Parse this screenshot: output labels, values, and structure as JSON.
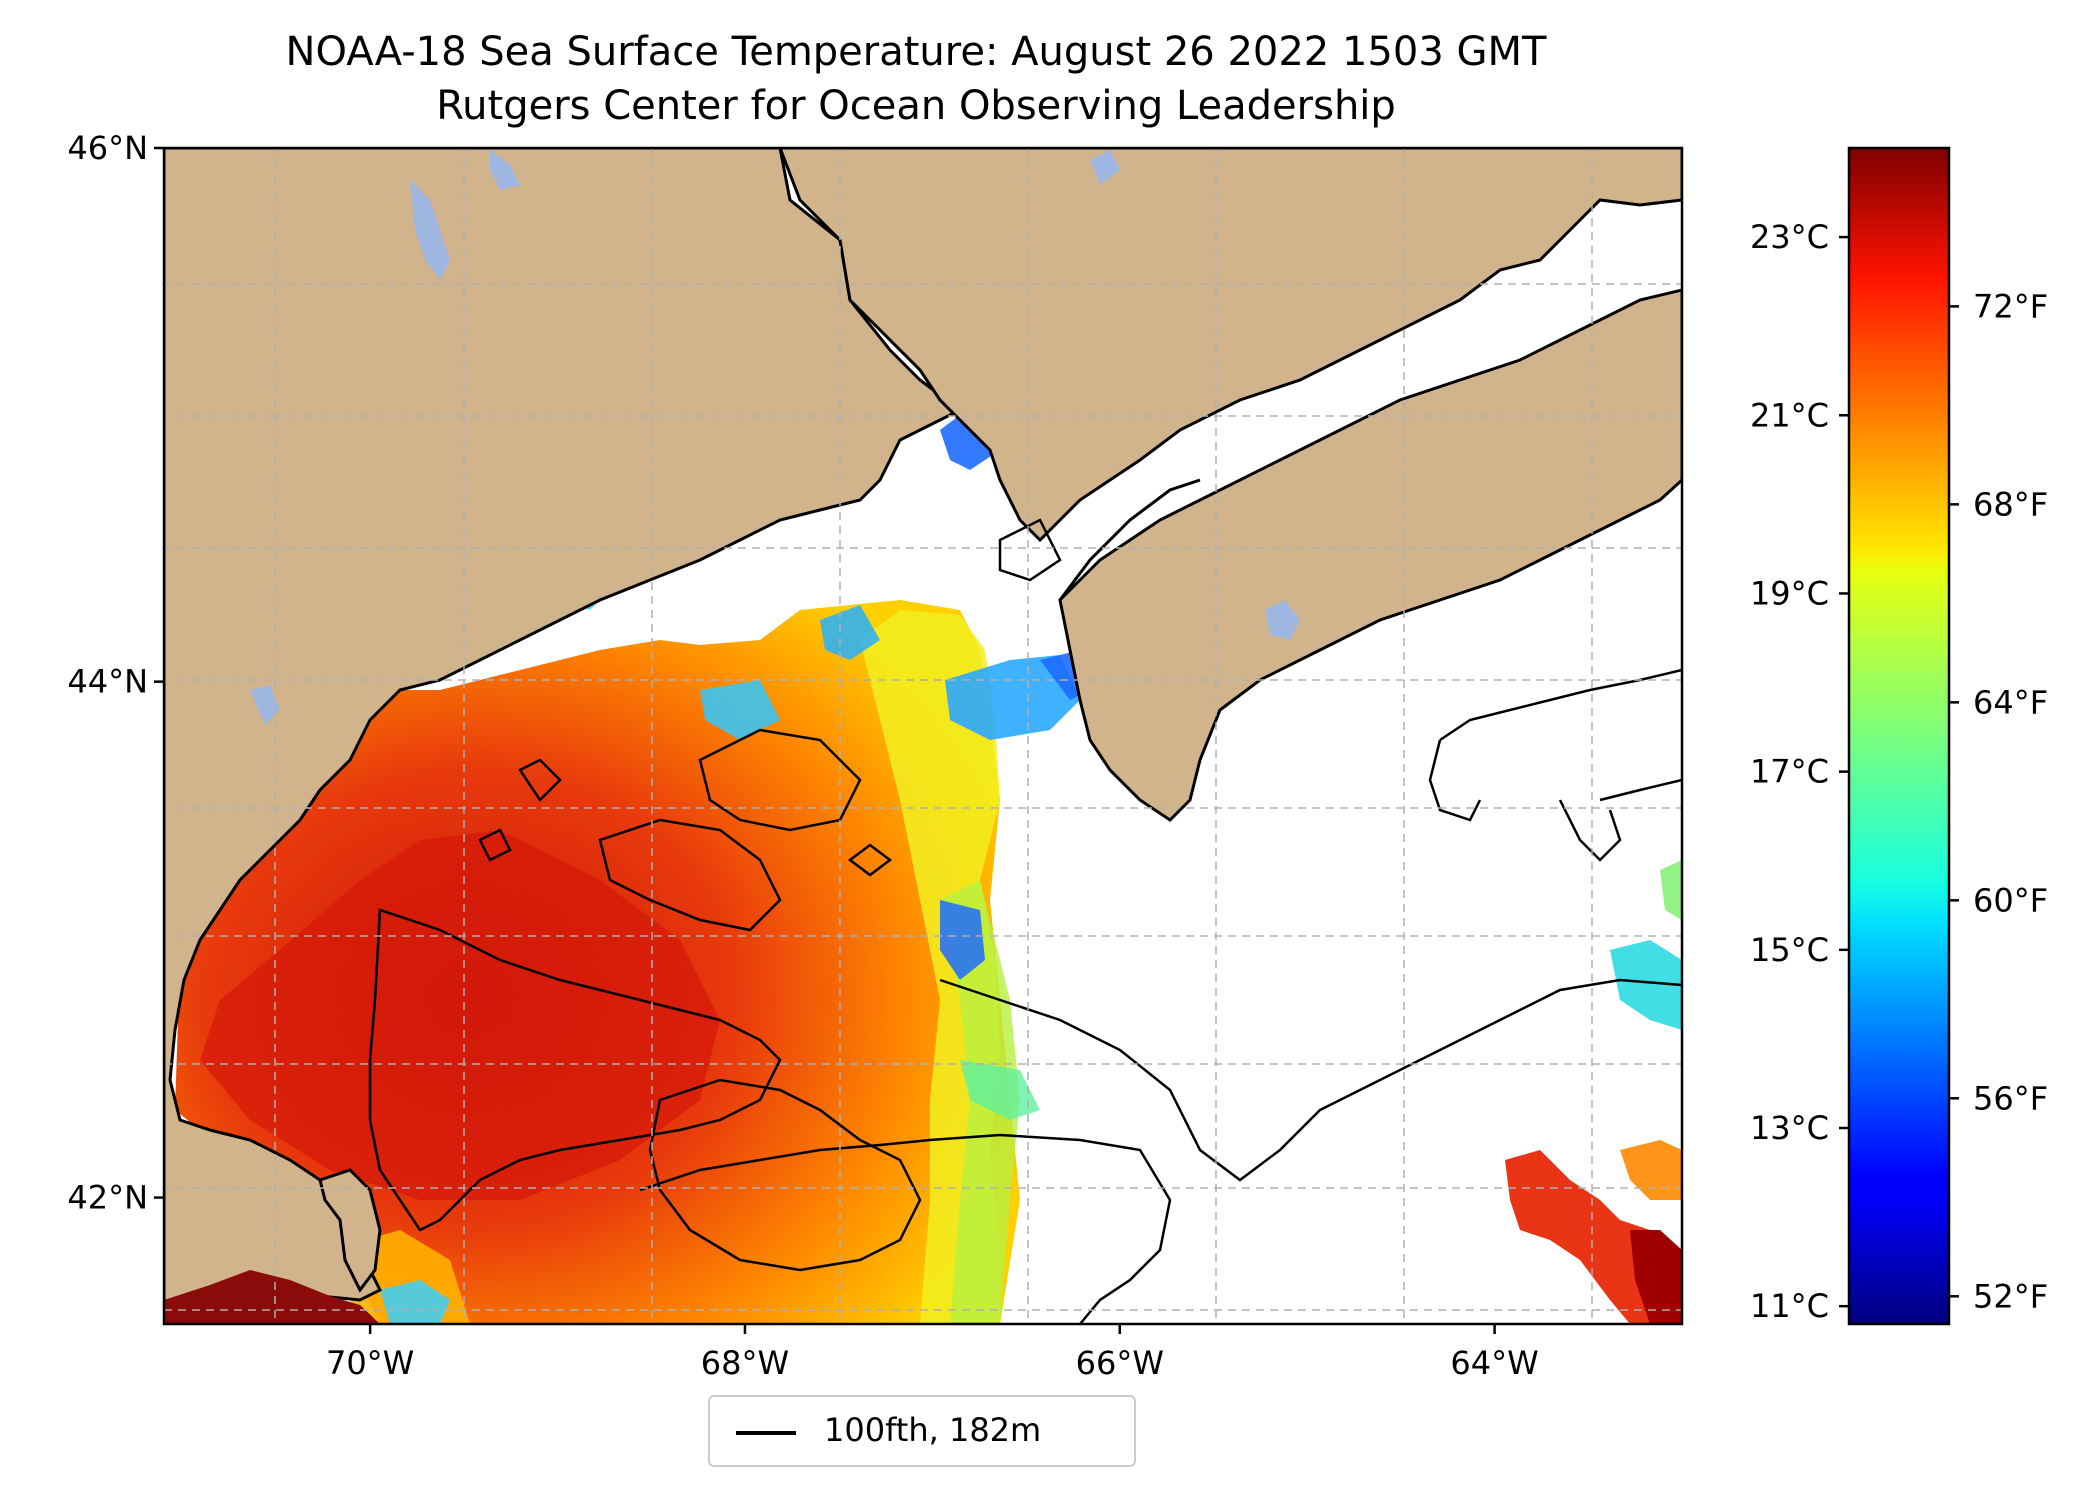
{
  "title": "NOAA-18 Sea Surface Temperature: August 26 2022 1503 GMT",
  "subtitle": "Rutgers Center for Ocean Observing Leadership",
  "map": {
    "lat_labels": [
      {
        "text": "46°N",
        "value": 46
      },
      {
        "text": "44°N",
        "value": 44
      },
      {
        "text": "42°N",
        "value": 42
      }
    ],
    "lon_labels": [
      {
        "text": "70°W",
        "value": -70
      },
      {
        "text": "68°W",
        "value": -68
      },
      {
        "text": "66°W",
        "value": -66
      },
      {
        "text": "64°W",
        "value": -64
      }
    ],
    "extent": {
      "lon": [
        -71.1,
        -63.0
      ],
      "lat": [
        41.5,
        46.0
      ]
    },
    "land_color": "#d2b48c",
    "lake_color": "#9fb6e0",
    "nodata_color": "#ffffff",
    "grid": true
  },
  "legend": {
    "label": "100fth, 182m"
  },
  "colorbar": {
    "colormap": "jet",
    "celsius_labels": [
      "23°C",
      "21°C",
      "19°C",
      "17°C",
      "15°C",
      "13°C",
      "11°C"
    ],
    "celsius_values": [
      23,
      21,
      19,
      17,
      15,
      13,
      11
    ],
    "fahrenheit_labels": [
      "72°F",
      "68°F",
      "64°F",
      "60°F",
      "56°F",
      "52°F"
    ],
    "fahrenheit_values": [
      72,
      68,
      64,
      60,
      56,
      52
    ],
    "range_c": [
      10.8,
      24.0
    ]
  },
  "colors": {
    "warm_core": "#d61a0a",
    "shelf": "#ff8a00",
    "coastal": "#e8ee22",
    "cold_patch": "#1e6bff"
  }
}
